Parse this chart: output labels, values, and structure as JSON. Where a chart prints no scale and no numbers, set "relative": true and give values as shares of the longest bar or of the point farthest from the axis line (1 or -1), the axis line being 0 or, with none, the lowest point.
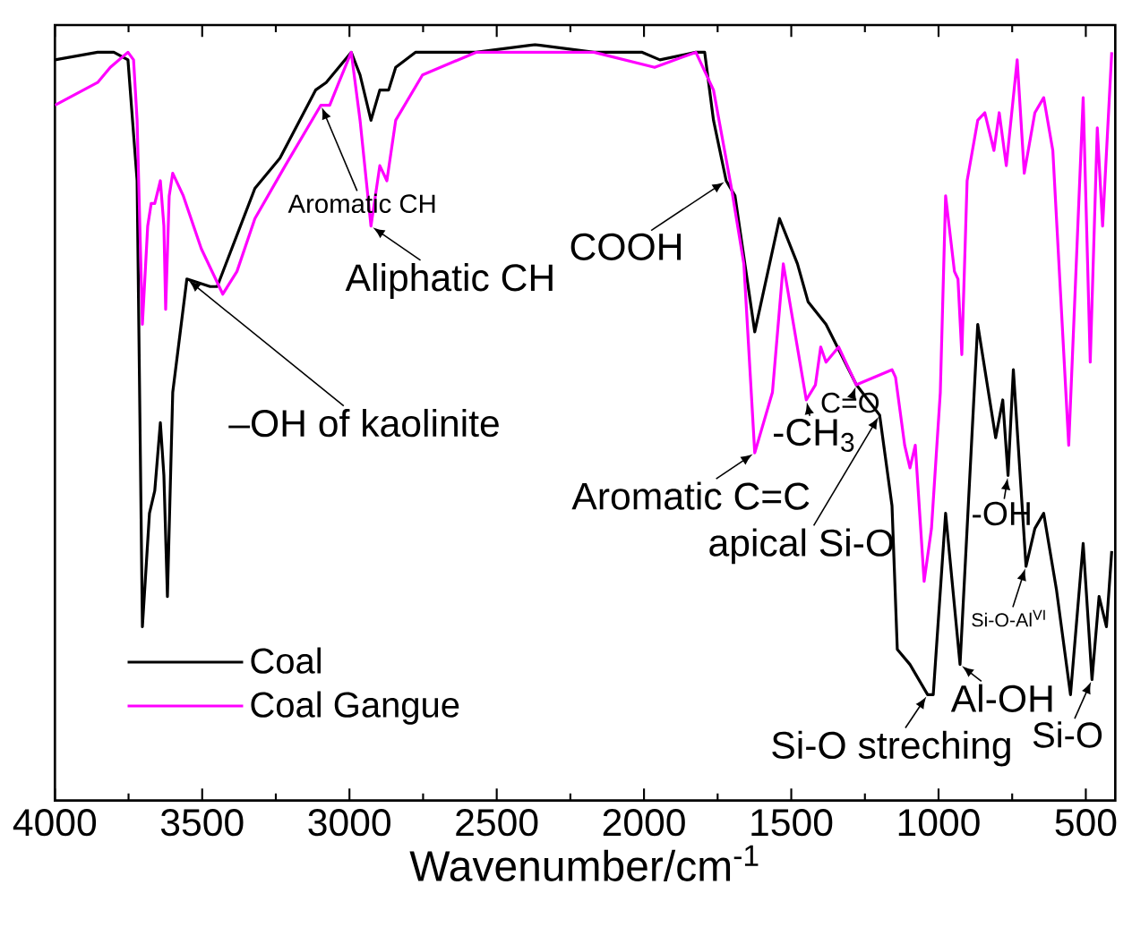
{
  "chart_data": {
    "type": "line",
    "relative": true,
    "xlabel": "Wavenumber/cm$^{-1}$",
    "xlim": [
      4000,
      400
    ],
    "xticks": [
      4000,
      3500,
      3000,
      2500,
      2000,
      1500,
      1000,
      500
    ],
    "grid": false,
    "legend": "bottom left",
    "marker": "none",
    "line_style": "solid",
    "series": [
      {
        "name": "Coal",
        "color": "#000000",
        "x": [
          4000,
          3855,
          3800,
          3752,
          3721,
          3703,
          3679,
          3661,
          3642,
          3630,
          3618,
          3600,
          3552,
          3473,
          3449,
          3321,
          3236,
          3115,
          3079,
          2994,
          2964,
          2927,
          2897,
          2867,
          2843,
          2776,
          2612,
          2570,
          2370,
          2170,
          2006,
          1946,
          1824,
          1794,
          1764,
          1721,
          1691,
          1624,
          1540,
          1479,
          1443,
          1382,
          1279,
          1200,
          1158,
          1140,
          1097,
          1037,
          1018,
          976,
          927,
          867,
          806,
          782,
          764,
          746,
          703,
          673,
          643,
          600,
          552,
          509,
          479,
          455,
          430,
          412
        ],
        "values": [
          0.98,
          0.99,
          0.99,
          0.98,
          0.82,
          0.23,
          0.38,
          0.41,
          0.5,
          0.43,
          0.27,
          0.54,
          0.69,
          0.68,
          0.68,
          0.81,
          0.85,
          0.94,
          0.95,
          0.99,
          0.96,
          0.9,
          0.94,
          0.94,
          0.97,
          0.99,
          0.99,
          0.99,
          1.0,
          0.99,
          0.99,
          0.98,
          0.99,
          0.99,
          0.9,
          0.82,
          0.8,
          0.62,
          0.77,
          0.71,
          0.66,
          0.63,
          0.55,
          0.51,
          0.39,
          0.2,
          0.18,
          0.14,
          0.14,
          0.38,
          0.18,
          0.63,
          0.48,
          0.53,
          0.43,
          0.57,
          0.31,
          0.36,
          0.38,
          0.28,
          0.14,
          0.34,
          0.16,
          0.27,
          0.23,
          0.33
        ]
      },
      {
        "name": "Coal Gangue",
        "color": "#ff00ff",
        "x": [
          4000,
          3855,
          3812,
          3752,
          3733,
          3721,
          3703,
          3685,
          3673,
          3661,
          3642,
          3630,
          3624,
          3612,
          3600,
          3564,
          3503,
          3430,
          3382,
          3321,
          3218,
          3097,
          3067,
          3036,
          2994,
          2964,
          2927,
          2897,
          2873,
          2843,
          2752,
          2570,
          2370,
          2170,
          1964,
          1824,
          1764,
          1703,
          1661,
          1624,
          1564,
          1527,
          1449,
          1418,
          1400,
          1382,
          1339,
          1279,
          1158,
          1146,
          1115,
          1097,
          1079,
          1049,
          1024,
          994,
          976,
          946,
          934,
          921,
          903,
          867,
          843,
          812,
          794,
          770,
          733,
          709,
          673,
          643,
          612,
          558,
          509,
          485,
          461,
          443,
          412
        ],
        "values": [
          0.92,
          0.95,
          0.97,
          0.99,
          0.98,
          0.9,
          0.63,
          0.76,
          0.79,
          0.79,
          0.82,
          0.76,
          0.65,
          0.8,
          0.83,
          0.8,
          0.73,
          0.67,
          0.7,
          0.77,
          0.84,
          0.92,
          0.92,
          0.95,
          0.99,
          0.9,
          0.76,
          0.84,
          0.82,
          0.9,
          0.96,
          0.99,
          0.99,
          0.99,
          0.97,
          0.99,
          0.94,
          0.81,
          0.71,
          0.46,
          0.54,
          0.71,
          0.53,
          0.55,
          0.6,
          0.58,
          0.6,
          0.55,
          0.57,
          0.56,
          0.47,
          0.44,
          0.47,
          0.29,
          0.36,
          0.54,
          0.8,
          0.7,
          0.69,
          0.59,
          0.82,
          0.9,
          0.91,
          0.86,
          0.91,
          0.84,
          0.98,
          0.83,
          0.91,
          0.93,
          0.86,
          0.47,
          0.93,
          0.58,
          0.89,
          0.76,
          0.99
        ]
      }
    ],
    "annotations": [
      {
        "text": "Aromatic CH",
        "x": 3097,
        "y": 0.92
      },
      {
        "text": "Aliphatic CH",
        "x": 2927,
        "y": 0.76
      },
      {
        "text": "COOH",
        "x": 1721,
        "y": 0.82
      },
      {
        "text": "–OH of kaolinite",
        "x": 3552,
        "y": 0.69
      },
      {
        "text": "Aromatic C=C",
        "x": 1624,
        "y": 0.46
      },
      {
        "text": "-CH$_{3}$",
        "x": 1449,
        "y": 0.53
      },
      {
        "text": "C=O",
        "x": 1279,
        "y": 0.55
      },
      {
        "text": "apical Si-O",
        "x": 1200,
        "y": 0.51
      },
      {
        "text": "-OH",
        "x": 764,
        "y": 0.43
      },
      {
        "text": "Si-O-Al$^{VI}$",
        "x": 703,
        "y": 0.31
      },
      {
        "text": "Al-OH",
        "x": 927,
        "y": 0.18
      },
      {
        "text": "Si-O streching",
        "x": 1037,
        "y": 0.14
      },
      {
        "text": "Si-O",
        "x": 479,
        "y": 0.16
      }
    ]
  }
}
